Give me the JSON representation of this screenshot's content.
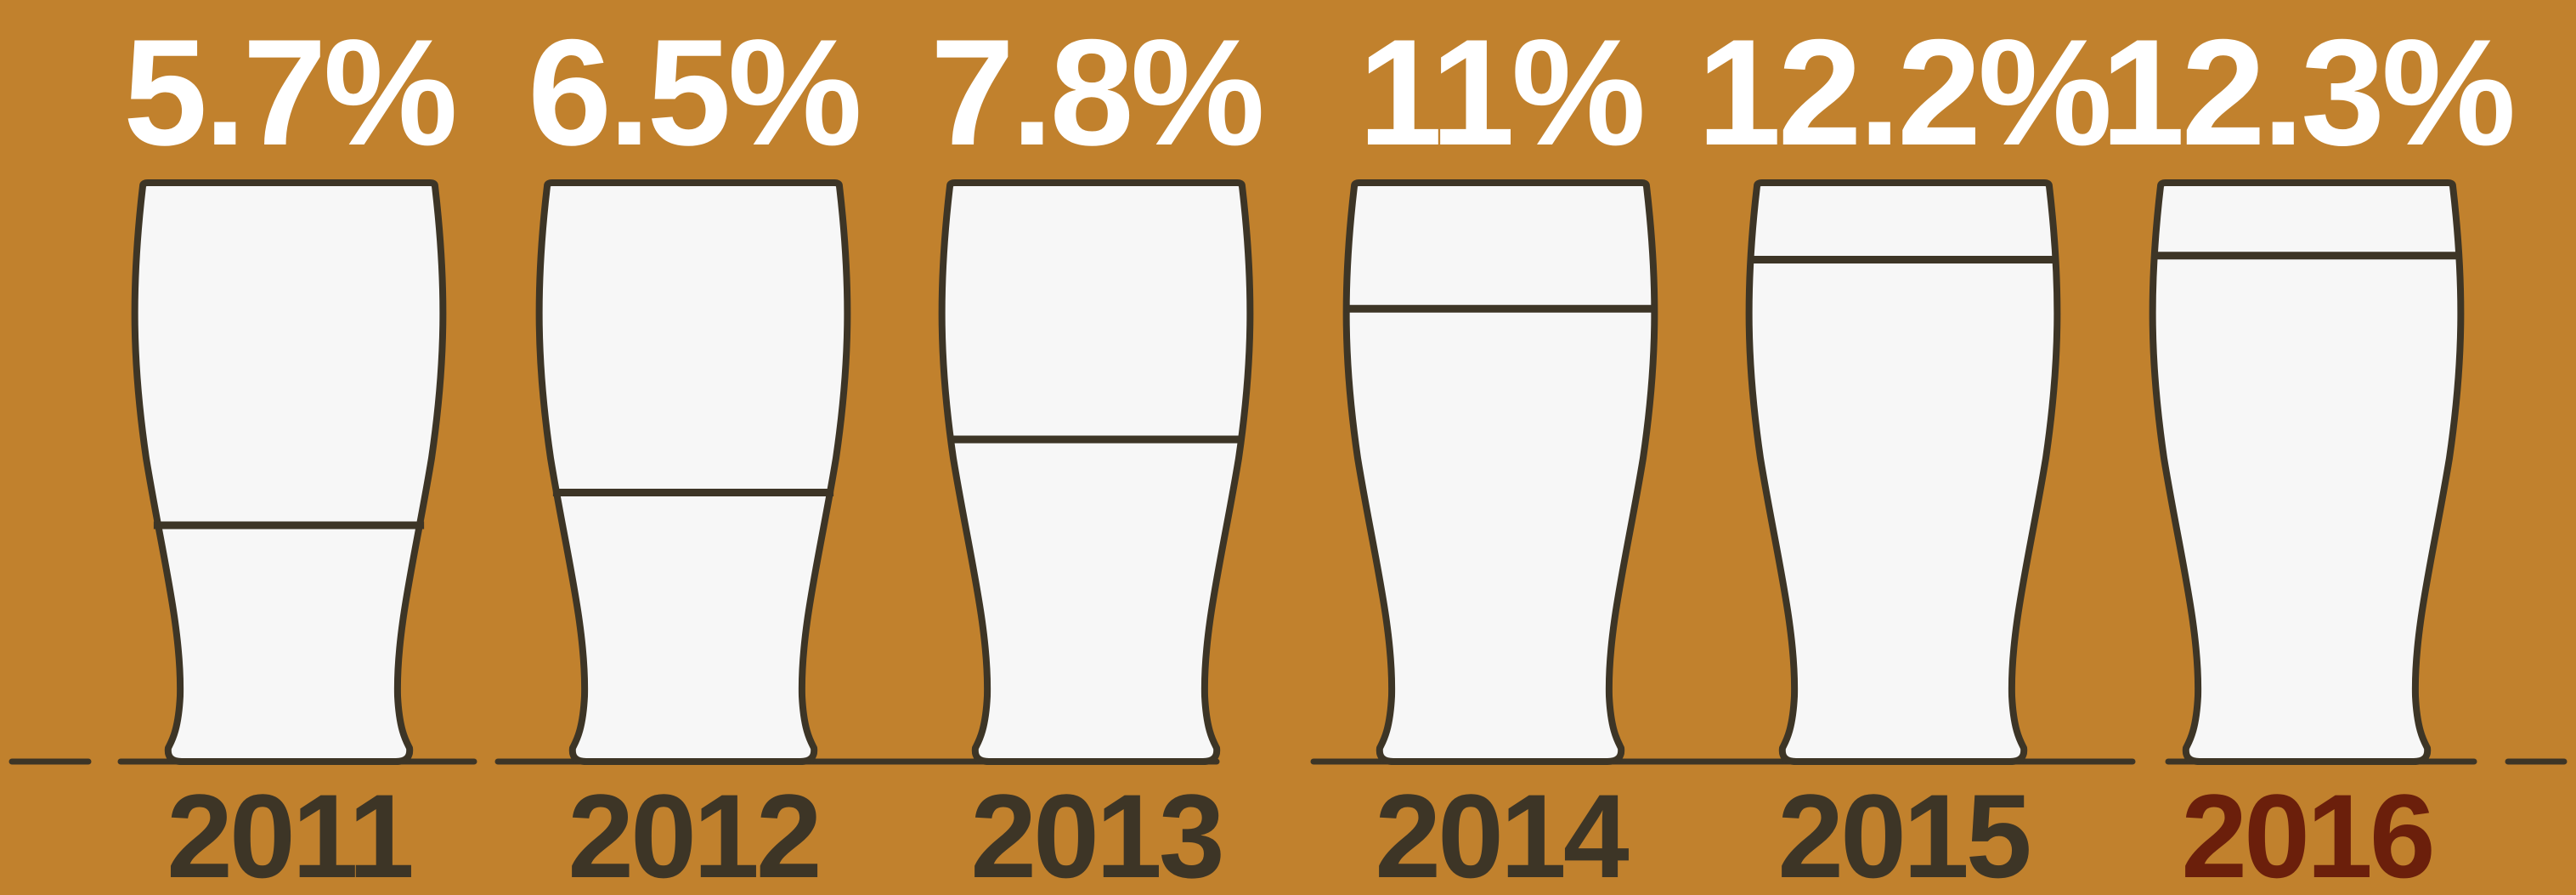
{
  "chart_data": {
    "type": "bar",
    "categories": [
      "2011",
      "2012",
      "2013",
      "2014",
      "2015",
      "2016"
    ],
    "values": [
      5.7,
      6.5,
      7.8,
      11,
      12.2,
      12.3
    ],
    "value_labels": [
      "5.7%",
      "6.5%",
      "7.8%",
      "11%",
      "12.2%",
      "12.3%"
    ],
    "title": "",
    "xlabel": "",
    "ylabel": "",
    "ylim": [
      0,
      14
    ],
    "grid": false,
    "legend": "none",
    "highlight_category": "2016"
  },
  "colors": {
    "background": "#C1812D",
    "glass_fill": "#F7F7F7",
    "outline": "#3D3526",
    "value_label": "#FFFFFF",
    "year_label": "#3D3526",
    "highlight_year_label": "#6B1F0B"
  }
}
